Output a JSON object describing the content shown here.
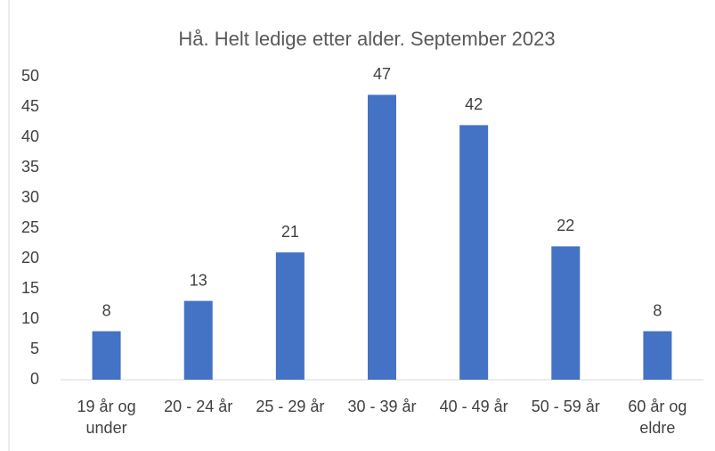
{
  "chart_data": {
    "type": "bar",
    "title": "Hå. Helt ledige etter alder. September 2023",
    "categories": [
      "19 år og under",
      "20 - 24 år",
      "25 - 29 år",
      "30 - 39 år",
      "40 - 49 år",
      "50 - 59 år",
      "60 år og eldre"
    ],
    "values": [
      8,
      13,
      21,
      47,
      42,
      22,
      8
    ],
    "color": "#4472c4",
    "ylim": [
      0,
      50
    ],
    "yticks": [
      0,
      5,
      10,
      15,
      20,
      25,
      30,
      35,
      40,
      45,
      50
    ],
    "grid": false
  }
}
